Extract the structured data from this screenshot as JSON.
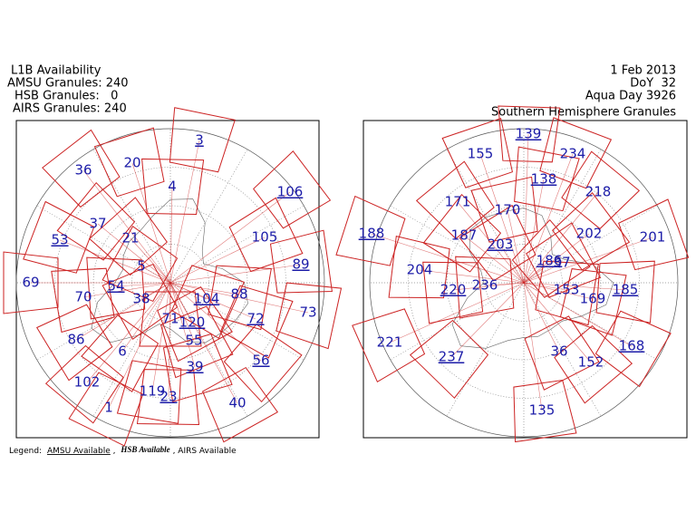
{
  "header": {
    "left": [
      "L1B Availability",
      "AMSU Granules: 240",
      "HSB Granules:   0",
      "AIRS Granules: 240"
    ],
    "right": [
      "1 Feb 2013",
      "DoY  32",
      "Aqua Day 3926"
    ],
    "subtitle": "Southern Hemisphere Granules"
  },
  "maps": [
    {
      "labels": [
        "3",
        "20",
        "36",
        "106",
        "4",
        "37",
        "53",
        "21",
        "105",
        "89",
        "5",
        "69",
        "54",
        "70",
        "38",
        "104",
        "88",
        "73",
        "72",
        "86",
        "71",
        "120",
        "55",
        "6",
        "56",
        "102",
        "119",
        "23",
        "40",
        "1",
        "39"
      ]
    },
    {
      "labels": [
        "139",
        "155",
        "234",
        "138",
        "218",
        "171",
        "188",
        "187",
        "170",
        "203",
        "202",
        "201",
        "186",
        "37",
        "204",
        "220",
        "236",
        "153",
        "185",
        "169",
        "221",
        "237",
        "36",
        "152",
        "168",
        "135"
      ]
    }
  ],
  "legend": {
    "items": [
      "Legend:",
      "AMSU Available",
      ",",
      "HSB Available",
      ", AIRS Available"
    ]
  }
}
